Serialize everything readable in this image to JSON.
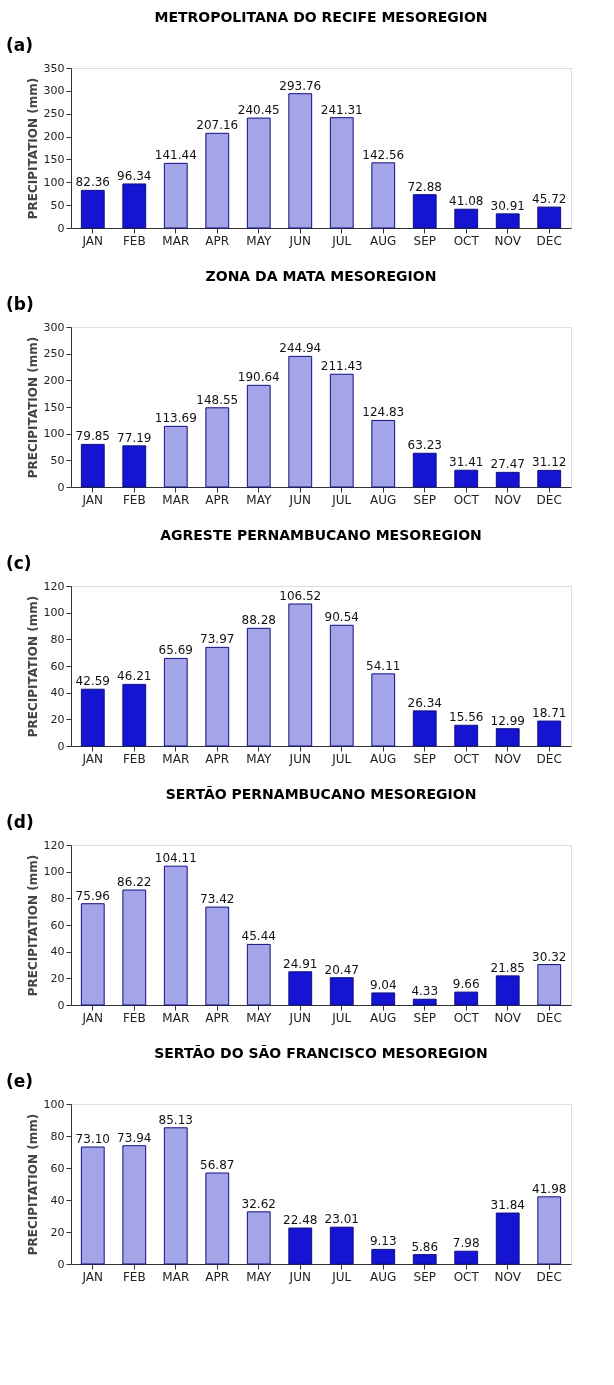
{
  "chart_data": [
    {
      "type": "bar",
      "title": "METROPOLITANA DO RECIFE MESOREGION",
      "annotations": [
        "(a)"
      ],
      "ylabel": "PRECIPITATION (mm)",
      "categories": [
        "JAN",
        "FEB",
        "MAR",
        "APR",
        "MAY",
        "JUN",
        "JUL",
        "AUG",
        "SEP",
        "OCT",
        "NOV",
        "DEC"
      ],
      "values": [
        82.36,
        96.34,
        141.44,
        207.16,
        240.45,
        293.76,
        241.31,
        142.56,
        72.88,
        41.08,
        30.91,
        45.72
      ],
      "colors": [
        "#1414d2",
        "#1414d2",
        "#a4a4e8",
        "#a4a4e8",
        "#a4a4e8",
        "#a4a4e8",
        "#a4a4e8",
        "#a4a4e8",
        "#1414d2",
        "#1414d2",
        "#1414d2",
        "#1414d2"
      ],
      "ylim": [
        0,
        350
      ],
      "yticks": [
        0,
        50,
        100,
        150,
        200,
        250,
        300,
        350
      ],
      "data_labels": true,
      "grid": false
    },
    {
      "type": "bar",
      "title": "ZONA DA MATA MESOREGION",
      "annotations": [
        "(b)"
      ],
      "ylabel": "PRECIPITATION (mm)",
      "categories": [
        "JAN",
        "FEB",
        "MAR",
        "APR",
        "MAY",
        "JUN",
        "JUL",
        "AUG",
        "SEP",
        "OCT",
        "NOV",
        "DEC"
      ],
      "values": [
        79.85,
        77.19,
        113.69,
        148.55,
        190.64,
        244.94,
        211.43,
        124.83,
        63.23,
        31.41,
        27.47,
        31.12
      ],
      "colors": [
        "#1414d2",
        "#1414d2",
        "#a4a4e8",
        "#a4a4e8",
        "#a4a4e8",
        "#a4a4e8",
        "#a4a4e8",
        "#a4a4e8",
        "#1414d2",
        "#1414d2",
        "#1414d2",
        "#1414d2"
      ],
      "ylim": [
        0,
        300
      ],
      "yticks": [
        0,
        50,
        100,
        150,
        200,
        250,
        300
      ],
      "data_labels": true,
      "grid": false
    },
    {
      "type": "bar",
      "title": "AGRESTE PERNAMBUCANO MESOREGION",
      "annotations": [
        "(c)"
      ],
      "ylabel": "PRECIPITATION (mm)",
      "categories": [
        "JAN",
        "FEB",
        "MAR",
        "APR",
        "MAY",
        "JUN",
        "JUL",
        "AUG",
        "SEP",
        "OCT",
        "NOV",
        "DEC"
      ],
      "values": [
        42.59,
        46.21,
        65.69,
        73.97,
        88.28,
        106.52,
        90.54,
        54.11,
        26.34,
        15.56,
        12.99,
        18.71
      ],
      "colors": [
        "#1414d2",
        "#1414d2",
        "#a4a4e8",
        "#a4a4e8",
        "#a4a4e8",
        "#a4a4e8",
        "#a4a4e8",
        "#a4a4e8",
        "#1414d2",
        "#1414d2",
        "#1414d2",
        "#1414d2"
      ],
      "ylim": [
        0,
        120
      ],
      "yticks": [
        0,
        20,
        40,
        60,
        80,
        100,
        120
      ],
      "data_labels": true,
      "grid": false
    },
    {
      "type": "bar",
      "title": "SERTÃO PERNAMBUCANO MESOREGION",
      "annotations": [
        "(d)"
      ],
      "ylabel": "PRECIPITATION (mm)",
      "categories": [
        "JAN",
        "FEB",
        "MAR",
        "APR",
        "MAY",
        "JUN",
        "JUL",
        "AUG",
        "SEP",
        "OCT",
        "NOV",
        "DEC"
      ],
      "values": [
        75.96,
        86.22,
        104.11,
        73.42,
        45.44,
        24.91,
        20.47,
        9.04,
        4.33,
        9.66,
        21.85,
        30.32
      ],
      "colors": [
        "#a4a4e8",
        "#a4a4e8",
        "#a4a4e8",
        "#a4a4e8",
        "#a4a4e8",
        "#1414d2",
        "#1414d2",
        "#1414d2",
        "#1414d2",
        "#1414d2",
        "#1414d2",
        "#a4a4e8"
      ],
      "ylim": [
        0,
        120
      ],
      "yticks": [
        0,
        20,
        40,
        60,
        80,
        100,
        120
      ],
      "data_labels": true,
      "grid": false
    },
    {
      "type": "bar",
      "title": "SERTÃO DO SÃO FRANCISCO MESOREGION",
      "annotations": [
        "(e)"
      ],
      "ylabel": "PRECIPITATION (mm)",
      "categories": [
        "JAN",
        "FEB",
        "MAR",
        "APR",
        "MAY",
        "JUN",
        "JUL",
        "AUG",
        "SEP",
        "OCT",
        "NOV",
        "DEC"
      ],
      "values": [
        73.1,
        73.94,
        85.13,
        56.87,
        32.62,
        22.48,
        23.01,
        9.13,
        5.86,
        7.98,
        31.84,
        41.98
      ],
      "value_labels": [
        "73.10",
        "73.94",
        "85.13",
        "56.87",
        "32.62",
        "22.48",
        "23.01",
        "9.13",
        "5.86",
        "7.98",
        "31.84",
        "41.98"
      ],
      "colors": [
        "#a4a4e8",
        "#a4a4e8",
        "#a4a4e8",
        "#a4a4e8",
        "#a4a4e8",
        "#1414d2",
        "#1414d2",
        "#1414d2",
        "#1414d2",
        "#1414d2",
        "#1414d2",
        "#a4a4e8"
      ],
      "ylim": [
        0,
        100
      ],
      "yticks": [
        0,
        20,
        40,
        60,
        80,
        100
      ],
      "grid": false
    }
  ]
}
